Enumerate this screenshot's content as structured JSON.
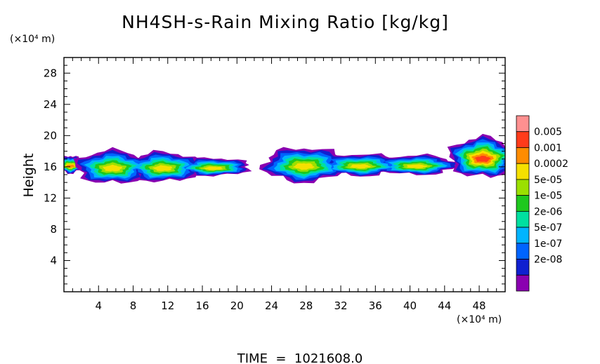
{
  "chart_data": {
    "type": "heatmap",
    "title": "NH4SH-s-Rain Mixing Ratio [kg/kg]",
    "ylabel": "Height",
    "y_unit": "(×10⁴ m)",
    "x_unit": "(×10⁴ m)",
    "footer": "TIME  =  1021608.0",
    "xlim": [
      0,
      51
    ],
    "ylim": [
      0,
      30
    ],
    "x_ticks": [
      "4",
      "8",
      "12",
      "16",
      "20",
      "24",
      "28",
      "32",
      "36",
      "40",
      "44",
      "48"
    ],
    "y_ticks": [
      "4",
      "8",
      "12",
      "16",
      "20",
      "24",
      "28"
    ],
    "grid": false,
    "colorbar": {
      "labels": [
        "0.005",
        "0.001",
        "0.0002",
        "5e-05",
        "1e-05",
        "2e-06",
        "5e-07",
        "1e-07",
        "2e-08"
      ],
      "colors": [
        "#ff9090",
        "#ff3b1a",
        "#ff8c00",
        "#f5e000",
        "#9be000",
        "#1ec81e",
        "#00e0a0",
        "#00b4ff",
        "#0064ff",
        "#1020d0",
        "#8a00b0"
      ]
    },
    "clouds": [
      {
        "x": [
          0,
          1.5
        ],
        "y": [
          14.8,
          17.8
        ],
        "peak": "0.0002"
      },
      {
        "x": [
          2.7,
          20.2
        ],
        "y": [
          13.8,
          18.2
        ],
        "peak": "5e-05"
      },
      {
        "x": [
          24.5,
          44.0
        ],
        "y": [
          14.0,
          18.5
        ],
        "peak": "5e-05"
      },
      {
        "x": [
          45.8,
          51.0
        ],
        "y": [
          14.0,
          20.5
        ],
        "peak": "0.001"
      }
    ]
  }
}
